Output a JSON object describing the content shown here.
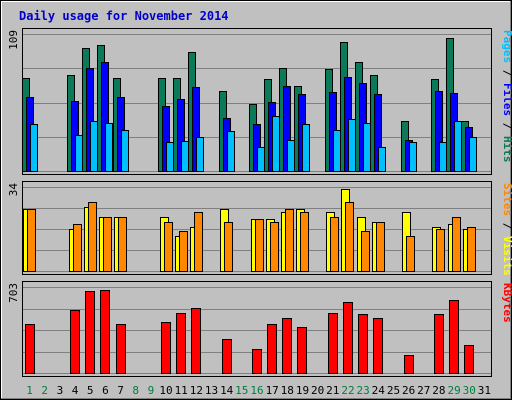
{
  "chart_data": {
    "type": "bar",
    "title": "Daily usage for November 2014",
    "categories": [
      "1",
      "2",
      "3",
      "4",
      "5",
      "6",
      "7",
      "8",
      "9",
      "10",
      "11",
      "12",
      "13",
      "14",
      "15",
      "16",
      "17",
      "18",
      "19",
      "20",
      "21",
      "22",
      "23",
      "24",
      "25",
      "26",
      "27",
      "28",
      "29",
      "30",
      "31"
    ],
    "weekend_days": [
      "1",
      "2",
      "8",
      "9",
      "15",
      "16",
      "22",
      "23",
      "29",
      "30"
    ],
    "colors": {
      "background": "#c0c0c0",
      "plot": "#c0c0c0",
      "title": "#0000cc",
      "hits": "#0a7a58",
      "files": "#0000ff",
      "pages": "#00bfff",
      "visits": "#ffff00",
      "sites": "#ff8800",
      "kbytes": "#ff0000",
      "weekday_label": "#000000",
      "weekend_label": "#008040"
    },
    "panels": [
      {
        "id": "hits-panel",
        "max_label": "109",
        "ymax": 109,
        "legend": [
          {
            "text": "Pages",
            "color": "#00bfff"
          },
          {
            "text": " / ",
            "color": "#000000"
          },
          {
            "text": "Files",
            "color": "#0000ff"
          },
          {
            "text": " / ",
            "color": "#000000"
          },
          {
            "text": "Hits",
            "color": "#0a7a58"
          }
        ],
        "series": [
          {
            "name": "Hits",
            "color": "#0a7a58",
            "values": [
              74,
              0,
              0,
              76,
              98,
              100,
              74,
              0,
              0,
              74,
              74,
              95,
              0,
              64,
              0,
              53,
              73,
              82,
              68,
              0,
              81,
              103,
              87,
              76,
              0,
              40,
              0,
              73,
              106,
              40,
              0
            ]
          },
          {
            "name": "Files",
            "color": "#0000ff",
            "values": [
              59,
              0,
              0,
              56,
              82,
              87,
              59,
              0,
              0,
              52,
              57,
              67,
              0,
              42,
              0,
              37,
              55,
              68,
              61,
              0,
              63,
              75,
              70,
              61,
              0,
              25,
              0,
              64,
              62,
              35,
              0
            ]
          },
          {
            "name": "Pages",
            "color": "#00bfff",
            "values": [
              37,
              0,
              0,
              29,
              40,
              38,
              33,
              0,
              0,
              23,
              24,
              27,
              0,
              32,
              0,
              19,
              44,
              25,
              37,
              0,
              33,
              41,
              38,
              19,
              0,
              23,
              0,
              23,
              40,
              27,
              0
            ]
          }
        ]
      },
      {
        "id": "visits-panel",
        "max_label": "34",
        "ymax": 34,
        "legend": [
          {
            "text": "Sites",
            "color": "#ff8800"
          },
          {
            "text": " / ",
            "color": "#000000"
          },
          {
            "text": "Visits",
            "color": "#ffff00"
          }
        ],
        "series": [
          {
            "name": "Visits",
            "color": "#ffff00",
            "values": [
              25,
              0,
              0,
              17,
              26,
              22,
              22,
              0,
              0,
              22,
              14,
              18,
              0,
              25,
              0,
              21,
              21,
              24,
              25,
              0,
              24,
              33,
              22,
              20,
              0,
              24,
              0,
              18,
              19,
              17,
              0
            ]
          },
          {
            "name": "Sites",
            "color": "#ff8800",
            "values": [
              25,
              0,
              0,
              19,
              28,
              22,
              22,
              0,
              0,
              20,
              16,
              24,
              0,
              20,
              0,
              21,
              20,
              25,
              24,
              0,
              22,
              28,
              16,
              20,
              0,
              14,
              0,
              17,
              22,
              18,
              0
            ]
          }
        ]
      },
      {
        "id": "kbytes-panel",
        "max_label": "703",
        "ymax": 703,
        "legend": [
          {
            "text": "KBytes",
            "color": "#ff0000"
          }
        ],
        "series": [
          {
            "name": "KBytes",
            "color": "#ff0000",
            "values": [
              398,
              0,
              0,
              514,
              669,
              682,
              398,
              0,
              0,
              419,
              490,
              530,
              0,
              280,
              0,
              197,
              400,
              450,
              380,
              0,
              490,
              580,
              480,
              450,
              0,
              150,
              0,
              480,
              600,
              230,
              0
            ]
          }
        ]
      }
    ]
  }
}
